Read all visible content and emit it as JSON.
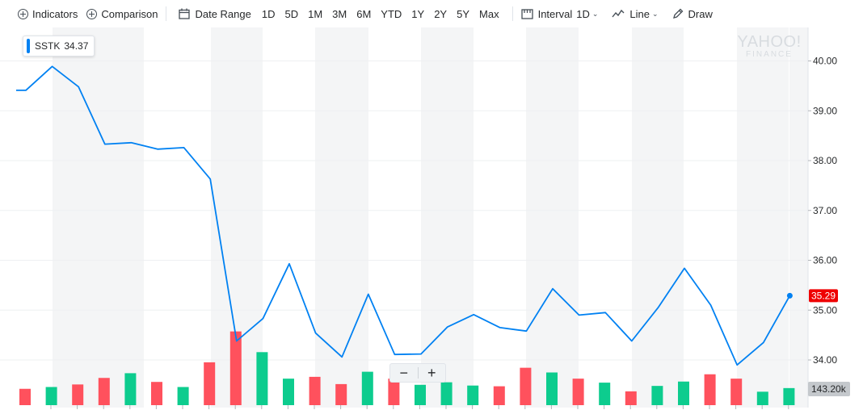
{
  "toolbar": {
    "indicators": "Indicators",
    "comparison": "Comparison",
    "date_range": "Date Range",
    "ranges": [
      "1D",
      "5D",
      "1M",
      "3M",
      "6M",
      "YTD",
      "1Y",
      "2Y",
      "5Y",
      "Max"
    ],
    "interval_label": "Interval",
    "interval_value": "1D",
    "chart_type": "Line",
    "draw": "Draw"
  },
  "legend": {
    "symbol": "SSTK",
    "value": "34.37"
  },
  "watermark": {
    "line1": "YAHOO!",
    "line2": "FINANCE"
  },
  "zoom": {
    "minus": "−",
    "plus": "+"
  },
  "colors": {
    "line": "#0081f2",
    "up": "#0dcc8e",
    "down": "#ff515d",
    "band": "#f4f5f6",
    "last_price_tag": "#ef0002",
    "volume_tag": "#c4c8cc"
  },
  "chart_data": {
    "type": "line",
    "series": [
      {
        "name": "SSTK",
        "values": [
          39.41,
          39.41,
          39.89,
          39.48,
          38.33,
          38.36,
          38.23,
          38.26,
          37.63,
          34.38,
          34.83,
          35.93,
          34.54,
          34.06,
          35.32,
          34.11,
          34.12,
          34.66,
          34.91,
          34.65,
          34.58,
          35.43,
          34.9,
          34.95,
          34.38,
          35.05,
          35.84,
          35.1,
          33.9,
          34.35,
          35.29
        ]
      }
    ],
    "volume": {
      "values": [
        0.45,
        0.5,
        0.57,
        0.75,
        0.88,
        0.64,
        0.5,
        1.18,
        2.03,
        1.46,
        0.73,
        0.78,
        0.58,
        0.92,
        0.73,
        0.56,
        0.63,
        0.54,
        0.52,
        1.03,
        0.9,
        0.73,
        0.62,
        0.38,
        0.53,
        0.65,
        0.85,
        0.73,
        0.37,
        0.47
      ],
      "direction": [
        "down",
        "up",
        "down",
        "down",
        "up",
        "down",
        "up",
        "down",
        "down",
        "up",
        "up",
        "down",
        "down",
        "up",
        "down",
        "up",
        "up",
        "up",
        "down",
        "down",
        "up",
        "down",
        "up",
        "down",
        "up",
        "up",
        "down",
        "down",
        "up",
        "up"
      ],
      "label": "143.20k"
    },
    "y_ticks": [
      "40.00",
      "39.00",
      "38.00",
      "37.00",
      "36.00",
      "35.00",
      "34.00"
    ],
    "ylim": [
      33.35,
      40.77
    ],
    "last_price": "35.29",
    "grid": true
  }
}
